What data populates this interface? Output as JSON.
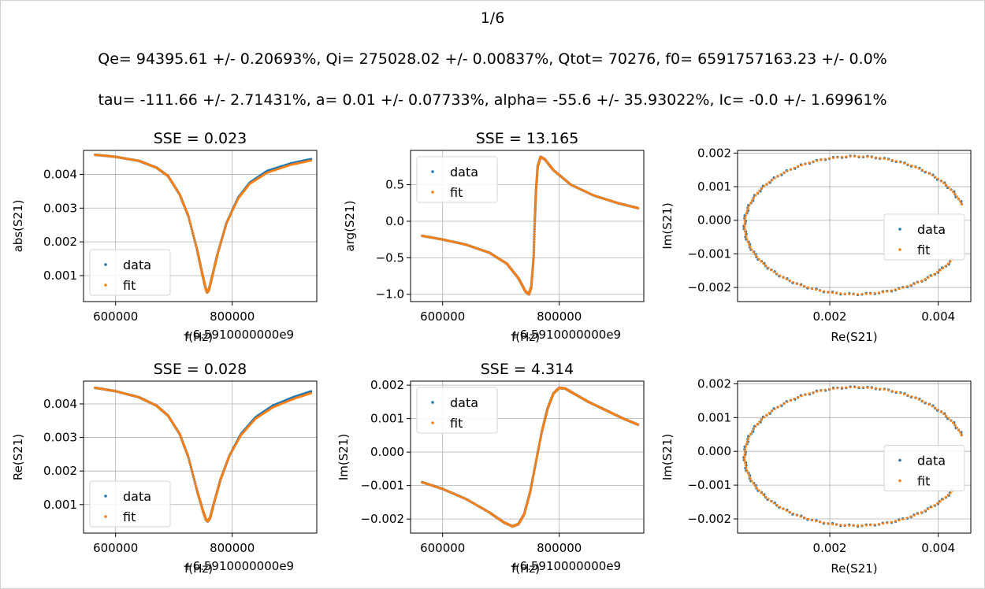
{
  "header": {
    "page": "1/6",
    "line1": "Qe= 94395.61 +/- 0.20693%,   Qi= 275028.02 +/- 0.00837%,   Qtot= 70276,   f0= 6591757163.23 +/- 0.0%",
    "line2": "tau= -111.66 +/- 2.71431%,   a= 0.01 +/- 0.07733%,   alpha= -55.6 +/- 35.93022%,   Ic= -0.0 +/- 1.69961%"
  },
  "colors": {
    "data": "#1f77b4",
    "fit": "#ff7f0e",
    "grid": "#b0b0b0"
  },
  "chart_data": [
    {
      "type": "scatter",
      "title": "SSE = 0.023",
      "xlabel": "f(Hz)",
      "ylabel": "abs(S21)",
      "x_offset_label": "+6.5910000000e9",
      "xlim": [
        545000,
        945000
      ],
      "ylim": [
        0.00023,
        0.00471
      ],
      "xticks": [
        600000,
        800000
      ],
      "xtick_labels": [
        "600000",
        "800000"
      ],
      "yticks": [
        0.001,
        0.002,
        0.003,
        0.004
      ],
      "ytick_labels": [
        "0.001",
        "0.002",
        "0.003",
        "0.004"
      ],
      "grid": true,
      "legend": "lower-left",
      "legend_entries": [
        "data",
        "fit"
      ],
      "series": [
        {
          "name": "data",
          "x": [
            565000,
            600000,
            640000,
            670000,
            690000,
            710000,
            725000,
            740000,
            748000,
            754000,
            757000,
            760000,
            766000,
            775000,
            790000,
            810000,
            830000,
            860000,
            900000,
            935000
          ],
          "y": [
            0.00458,
            0.00452,
            0.0044,
            0.0042,
            0.00395,
            0.0034,
            0.00275,
            0.00175,
            0.0011,
            0.00065,
            0.0005,
            0.00058,
            0.001,
            0.00165,
            0.00255,
            0.0033,
            0.00375,
            0.0041,
            0.00432,
            0.00445
          ]
        },
        {
          "name": "fit",
          "x": [
            565000,
            600000,
            640000,
            670000,
            690000,
            710000,
            725000,
            740000,
            748000,
            754000,
            757000,
            760000,
            766000,
            775000,
            790000,
            810000,
            830000,
            860000,
            900000,
            935000
          ],
          "y": [
            0.00458,
            0.00452,
            0.0044,
            0.0042,
            0.00395,
            0.0034,
            0.00275,
            0.00175,
            0.0011,
            0.00065,
            0.0005,
            0.00058,
            0.001,
            0.00165,
            0.00255,
            0.00328,
            0.00372,
            0.00405,
            0.00428,
            0.00441
          ]
        }
      ]
    },
    {
      "type": "scatter",
      "title": "SSE = 13.165",
      "xlabel": "f(Hz)",
      "ylabel": "arg(S21)",
      "x_offset_label": "+6.5910000000e9",
      "xlim": [
        545000,
        945000
      ],
      "ylim": [
        -1.1,
        0.97
      ],
      "xticks": [
        600000,
        800000
      ],
      "xtick_labels": [
        "600000",
        "800000"
      ],
      "yticks": [
        -1.0,
        -0.5,
        0.0,
        0.5
      ],
      "ytick_labels": [
        "−1.0",
        "−0.5",
        "0.0",
        "0.5"
      ],
      "grid": true,
      "legend": "upper-left",
      "legend_entries": [
        "data",
        "fit"
      ],
      "series": [
        {
          "name": "data",
          "x": [
            565000,
            600000,
            640000,
            680000,
            710000,
            730000,
            742000,
            748000,
            752000,
            756000,
            758000,
            760000,
            763000,
            768000,
            775000,
            790000,
            820000,
            860000,
            900000,
            935000
          ],
          "y": [
            -0.2,
            -0.25,
            -0.32,
            -0.43,
            -0.58,
            -0.78,
            -0.96,
            -1.0,
            -0.9,
            -0.5,
            0.0,
            0.4,
            0.75,
            0.88,
            0.85,
            0.7,
            0.5,
            0.35,
            0.25,
            0.18
          ]
        },
        {
          "name": "fit",
          "x": [
            565000,
            600000,
            640000,
            680000,
            710000,
            730000,
            742000,
            748000,
            752000,
            756000,
            758000,
            760000,
            763000,
            768000,
            775000,
            790000,
            820000,
            860000,
            900000,
            935000
          ],
          "y": [
            -0.2,
            -0.25,
            -0.32,
            -0.43,
            -0.58,
            -0.78,
            -0.96,
            -1.0,
            -0.9,
            -0.5,
            0.0,
            0.4,
            0.75,
            0.88,
            0.85,
            0.7,
            0.5,
            0.35,
            0.25,
            0.18
          ]
        }
      ]
    },
    {
      "type": "scatter",
      "title": "",
      "xlabel": "Re(S21)",
      "ylabel": "Im(S21)",
      "x_offset_label": "",
      "xlim": [
        0.0003,
        0.0046
      ],
      "ylim": [
        -0.00242,
        0.00208
      ],
      "xticks": [
        0.002,
        0.004
      ],
      "xtick_labels": [
        "0.002",
        "0.004"
      ],
      "yticks": [
        -0.002,
        -0.001,
        0.0,
        0.001,
        0.002
      ],
      "ytick_labels": [
        "−0.002",
        "−0.001",
        "0.000",
        "0.001",
        "0.002"
      ],
      "grid": true,
      "legend": "center-right",
      "legend_entries": [
        "data",
        "fit"
      ],
      "circle": {
        "center": [
          0.00248,
          -0.00015
        ],
        "radius": 0.00205,
        "gap_start": 18,
        "gap_end": -28
      },
      "series": [
        {
          "name": "data",
          "x": [
            0.00437,
            0.00405,
            0.00355,
            0.0029,
            0.00248,
            0.0018,
            0.0011,
            0.00065,
            0.00048,
            0.0006,
            0.001,
            0.0017,
            0.00248,
            0.0033,
            0.00395,
            0.00435
          ],
          "y": [
            0.0008,
            0.00135,
            0.00175,
            0.00195,
            0.0019,
            0.0018,
            0.0014,
            0.00075,
            -0.00015,
            -0.001,
            -0.0016,
            -0.002,
            -0.0022,
            -0.00205,
            -0.00165,
            -0.0009
          ]
        },
        {
          "name": "fit",
          "x": [
            0.00437,
            0.00405,
            0.00355,
            0.0029,
            0.00248,
            0.0018,
            0.0011,
            0.00065,
            0.00048,
            0.0006,
            0.001,
            0.0017,
            0.00248,
            0.0033,
            0.00395,
            0.00435
          ],
          "y": [
            0.0008,
            0.00135,
            0.00175,
            0.00195,
            0.0019,
            0.0018,
            0.0014,
            0.00075,
            -0.00015,
            -0.001,
            -0.0016,
            -0.002,
            -0.0022,
            -0.00205,
            -0.00165,
            -0.0009
          ]
        }
      ]
    },
    {
      "type": "scatter",
      "title": "SSE = 0.028",
      "xlabel": "f(Hz)",
      "ylabel": "Re(S21)",
      "x_offset_label": "+6.5910000000e9",
      "xlim": [
        545000,
        945000
      ],
      "ylim": [
        0.00015,
        0.00468
      ],
      "xticks": [
        600000,
        800000
      ],
      "xtick_labels": [
        "600000",
        "800000"
      ],
      "yticks": [
        0.001,
        0.002,
        0.003,
        0.004
      ],
      "ytick_labels": [
        "0.001",
        "0.002",
        "0.003",
        "0.004"
      ],
      "grid": true,
      "legend": "lower-left",
      "legend_entries": [
        "data",
        "fit"
      ],
      "series": [
        {
          "name": "data",
          "x": [
            565000,
            600000,
            640000,
            670000,
            690000,
            710000,
            725000,
            740000,
            750000,
            755000,
            758000,
            762000,
            768000,
            780000,
            795000,
            815000,
            840000,
            870000,
            905000,
            935000
          ],
          "y": [
            0.00448,
            0.00438,
            0.0042,
            0.00395,
            0.00365,
            0.0031,
            0.0024,
            0.0014,
            0.0008,
            0.00055,
            0.0005,
            0.0006,
            0.001,
            0.00175,
            0.00245,
            0.0031,
            0.0036,
            0.00395,
            0.0042,
            0.00437
          ]
        },
        {
          "name": "fit",
          "x": [
            565000,
            600000,
            640000,
            670000,
            690000,
            710000,
            725000,
            740000,
            750000,
            755000,
            758000,
            762000,
            768000,
            780000,
            795000,
            815000,
            840000,
            870000,
            905000,
            935000
          ],
          "y": [
            0.00448,
            0.00438,
            0.0042,
            0.00395,
            0.00365,
            0.0031,
            0.0024,
            0.0014,
            0.0008,
            0.00055,
            0.0005,
            0.0006,
            0.001,
            0.00175,
            0.00245,
            0.00307,
            0.00356,
            0.0039,
            0.00415,
            0.00432
          ]
        }
      ]
    },
    {
      "type": "scatter",
      "title": "SSE = 4.314",
      "xlabel": "f(Hz)",
      "ylabel": "Im(S21)",
      "x_offset_label": "+6.5910000000e9",
      "xlim": [
        545000,
        945000
      ],
      "ylim": [
        -0.00242,
        0.00212
      ],
      "xticks": [
        600000,
        800000
      ],
      "xtick_labels": [
        "600000",
        "800000"
      ],
      "yticks": [
        -0.002,
        -0.001,
        0.0,
        0.001,
        0.002
      ],
      "ytick_labels": [
        "−0.002",
        "−0.001",
        "0.000",
        "0.001",
        "0.002"
      ],
      "grid": true,
      "legend": "upper-left",
      "legend_entries": [
        "data",
        "fit"
      ],
      "series": [
        {
          "name": "data",
          "x": [
            565000,
            600000,
            640000,
            680000,
            705000,
            720000,
            730000,
            740000,
            750000,
            760000,
            770000,
            780000,
            790000,
            800000,
            810000,
            825000,
            850000,
            880000,
            910000,
            935000
          ],
          "y": [
            -0.0009,
            -0.0011,
            -0.0014,
            -0.0018,
            -0.0021,
            -0.00222,
            -0.00215,
            -0.00185,
            -0.0012,
            -0.0003,
            0.0006,
            0.0013,
            0.00175,
            0.00192,
            0.0019,
            0.00175,
            0.0015,
            0.00125,
            0.001,
            0.00082
          ]
        },
        {
          "name": "fit",
          "x": [
            565000,
            600000,
            640000,
            680000,
            705000,
            720000,
            730000,
            740000,
            750000,
            760000,
            770000,
            780000,
            790000,
            800000,
            810000,
            825000,
            850000,
            880000,
            910000,
            935000
          ],
          "y": [
            -0.0009,
            -0.0011,
            -0.0014,
            -0.0018,
            -0.0021,
            -0.00222,
            -0.00215,
            -0.00185,
            -0.0012,
            -0.0003,
            0.0006,
            0.0013,
            0.00175,
            0.00192,
            0.0019,
            0.00175,
            0.0015,
            0.00125,
            0.001,
            0.00082
          ]
        }
      ]
    },
    {
      "type": "scatter",
      "title": "",
      "xlabel": "Re(S21)",
      "ylabel": "Im(S21)",
      "x_offset_label": "",
      "xlim": [
        0.0003,
        0.0046
      ],
      "ylim": [
        -0.00242,
        0.00208
      ],
      "xticks": [
        0.002,
        0.004
      ],
      "xtick_labels": [
        "0.002",
        "0.004"
      ],
      "yticks": [
        -0.002,
        -0.001,
        0.0,
        0.001,
        0.002
      ],
      "ytick_labels": [
        "−0.002",
        "−0.001",
        "0.000",
        "0.001",
        "0.002"
      ],
      "grid": true,
      "legend": "center-right",
      "legend_entries": [
        "data",
        "fit"
      ],
      "circle": {
        "center": [
          0.00248,
          -0.00015
        ],
        "radius": 0.00205,
        "gap_start": 18,
        "gap_end": -28
      },
      "series": [
        {
          "name": "data",
          "x": [
            0.00437,
            0.00405,
            0.00355,
            0.0029,
            0.00248,
            0.0018,
            0.0011,
            0.00065,
            0.00048,
            0.0006,
            0.001,
            0.0017,
            0.00248,
            0.0033,
            0.00395,
            0.00435
          ],
          "y": [
            0.0008,
            0.00135,
            0.00175,
            0.00195,
            0.0019,
            0.0018,
            0.0014,
            0.00075,
            -0.00015,
            -0.001,
            -0.0016,
            -0.002,
            -0.0022,
            -0.00205,
            -0.00165,
            -0.0009
          ]
        },
        {
          "name": "fit",
          "x": [
            0.00437,
            0.00405,
            0.00355,
            0.0029,
            0.00248,
            0.0018,
            0.0011,
            0.00065,
            0.00048,
            0.0006,
            0.001,
            0.0017,
            0.00248,
            0.0033,
            0.00395,
            0.00435
          ],
          "y": [
            0.0008,
            0.00135,
            0.00175,
            0.00195,
            0.0019,
            0.0018,
            0.0014,
            0.00075,
            -0.00015,
            -0.001,
            -0.0016,
            -0.002,
            -0.0022,
            -0.00205,
            -0.00165,
            -0.0009
          ]
        }
      ]
    }
  ]
}
